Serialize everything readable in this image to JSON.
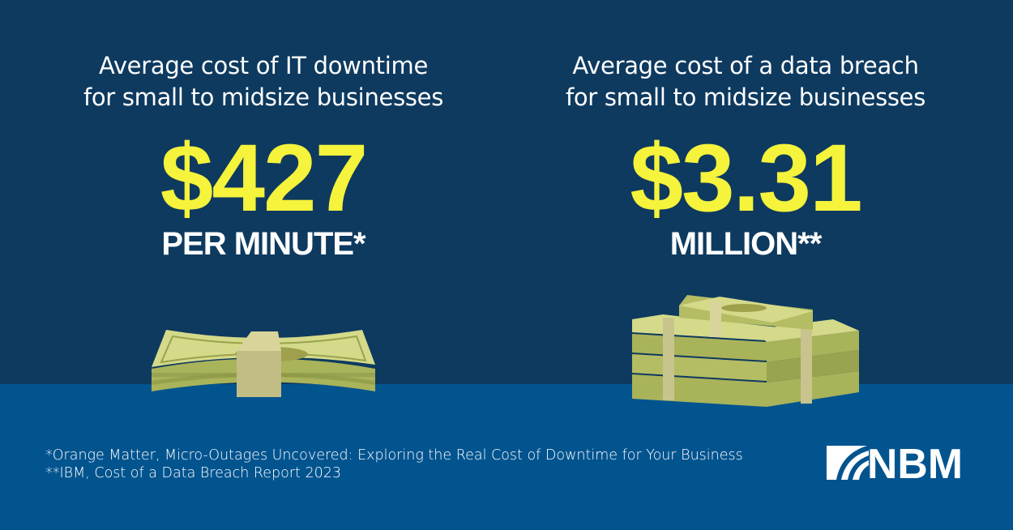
{
  "left": {
    "heading_line1": "Average cost of IT downtime",
    "heading_line2": "for small to midsize businesses",
    "value": "$427",
    "unit": "PER MINUTE*"
  },
  "right": {
    "heading_line1": "Average cost of a data breach",
    "heading_line2": "for small to midsize businesses",
    "value": "$3.31",
    "unit": "MILLION**"
  },
  "footnotes": [
    "*Orange Matter, Micro-Outages Uncovered: Exploring the Real Cost of Downtime for Your Business",
    "**IBM, Cost of a Data Breach Report 2023"
  ],
  "logo": {
    "text": "NBM"
  },
  "colors": {
    "top_bg": "#0e3a5f",
    "bottom_bg": "#02548f",
    "accent": "#f5f33b",
    "money": "#c7d17a"
  }
}
